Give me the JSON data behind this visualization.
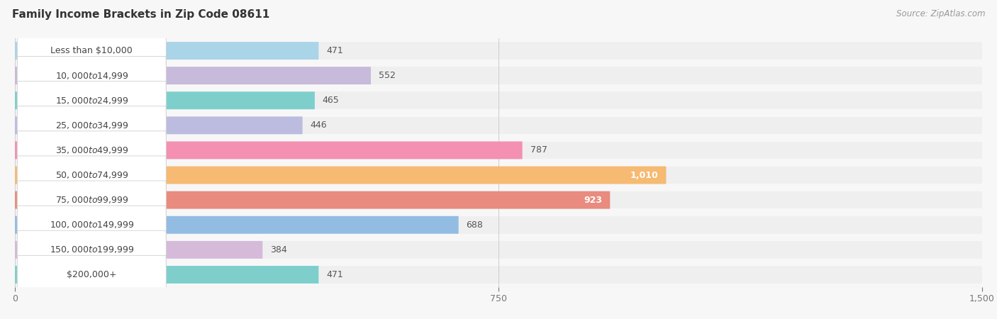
{
  "title": "Family Income Brackets in Zip Code 08611",
  "source_text": "Source: ZipAtlas.com",
  "categories": [
    "Less than $10,000",
    "$10,000 to $14,999",
    "$15,000 to $24,999",
    "$25,000 to $34,999",
    "$35,000 to $49,999",
    "$50,000 to $74,999",
    "$75,000 to $99,999",
    "$100,000 to $149,999",
    "$150,000 to $199,999",
    "$200,000+"
  ],
  "values": [
    471,
    552,
    465,
    446,
    787,
    1010,
    923,
    688,
    384,
    471
  ],
  "bar_colors": [
    "#aad4e8",
    "#c8bada",
    "#7ecfcc",
    "#bcbce0",
    "#f490b2",
    "#f6ba72",
    "#e98b7e",
    "#92bce2",
    "#d5bada",
    "#7ecfcc"
  ],
  "label_colors": [
    "#555555",
    "#555555",
    "#555555",
    "#555555",
    "#555555",
    "#ffffff",
    "#ffffff",
    "#555555",
    "#555555",
    "#555555"
  ],
  "xlim": [
    0,
    1500
  ],
  "xticks": [
    0,
    750,
    1500
  ],
  "background_color": "#f7f7f7",
  "bar_background_color": "#e6e6e6",
  "row_bg_color": "#efefef",
  "title_fontsize": 11,
  "source_fontsize": 8.5,
  "label_fontsize": 9,
  "category_fontsize": 9,
  "tick_fontsize": 9
}
